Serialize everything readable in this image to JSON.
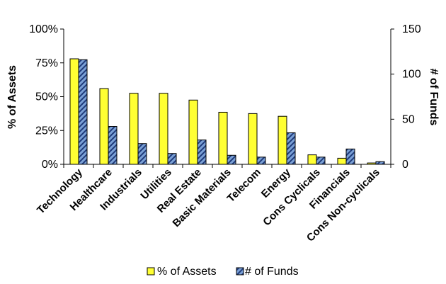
{
  "chart_data": {
    "type": "bar",
    "categories": [
      "Technology",
      "Healthcare",
      "Industrials",
      "Utilities",
      "Real Estate",
      "Basic Materials",
      "Telecom",
      "Energy",
      "Cons Cyclicals",
      "Financials",
      "Cons Non-cyclicals"
    ],
    "series": [
      {
        "name": "% of Assets",
        "axis": "left",
        "color": "#ffff33",
        "values": [
          0.78,
          0.56,
          0.525,
          0.525,
          0.475,
          0.385,
          0.375,
          0.355,
          0.07,
          0.045,
          0.01
        ]
      },
      {
        "name": "# of Funds",
        "axis": "right",
        "color": "#1f3b7a",
        "values": [
          116,
          42,
          23,
          12,
          27,
          10,
          8,
          35,
          8,
          17,
          3
        ]
      }
    ],
    "y_left": {
      "label": "% of Assets",
      "ylim": [
        0,
        1
      ],
      "ticks": [
        "0%",
        "25%",
        "50%",
        "75%",
        "100%"
      ]
    },
    "y_right": {
      "label": "# of Funds",
      "ylim": [
        0,
        150
      ],
      "ticks": [
        "0",
        "50",
        "100",
        "150"
      ]
    },
    "legend": {
      "position": "bottom",
      "items": [
        "% of Assets",
        "# of Funds"
      ]
    },
    "grid": false
  }
}
